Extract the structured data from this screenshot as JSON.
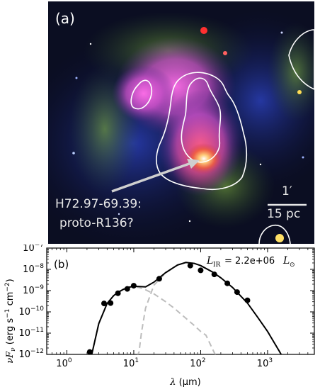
{
  "panel_a": {
    "label": "(a)",
    "source_line1": "H72.97-69.39:",
    "source_line2": "proto-R136?",
    "scale_angle": "1′",
    "scale_phys": "15 pc"
  },
  "panel_b": {
    "label": "(b)",
    "luminosity_text": "= 2.2e+06",
    "luminosity_var": "L",
    "luminosity_sub": "IR",
    "luminosity_unit": "L",
    "sun_symbol": "⊙"
  },
  "chart_data": {
    "type": "scatter",
    "xscale": "log",
    "yscale": "log",
    "xlim": [
      0.5,
      5000
    ],
    "ylim": [
      1e-12,
      1e-07
    ],
    "xlabel": "λ (μm)",
    "ylabel": "νFν (erg s⁻¹ cm⁻²)",
    "x_tick_labels": [
      "10^0",
      "10^1",
      "10^2",
      "10^3"
    ],
    "y_tick_labels": [
      "10^-12",
      "10^-11",
      "10^-10",
      "10^-9",
      "10^-8",
      "10^-7"
    ],
    "points": [
      {
        "x": 2.2,
        "y": 1.3e-12
      },
      {
        "x": 3.6,
        "y": 2.5e-10
      },
      {
        "x": 4.5,
        "y": 2.6e-10
      },
      {
        "x": 5.8,
        "y": 7.5e-10
      },
      {
        "x": 8.0,
        "y": 1.2e-09
      },
      {
        "x": 10.0,
        "y": 1.7e-09
      },
      {
        "x": 24.0,
        "y": 3.6e-09
      },
      {
        "x": 70.0,
        "y": 1.5e-08
      },
      {
        "x": 100.0,
        "y": 9e-09
      },
      {
        "x": 160.0,
        "y": 5.8e-09
      },
      {
        "x": 250.0,
        "y": 2.2e-09
      },
      {
        "x": 350.0,
        "y": 8.5e-10
      },
      {
        "x": 500.0,
        "y": 3.5e-10
      }
    ],
    "total_fit": [
      [
        2.0,
        1e-13
      ],
      [
        2.4,
        1.3e-12
      ],
      [
        3.0,
        2.8e-11
      ],
      [
        4.0,
        2.5e-10
      ],
      [
        5.0,
        5.8e-10
      ],
      [
        6.0,
        8.8e-10
      ],
      [
        7.0,
        1.15e-09
      ],
      [
        8.5,
        1.45e-09
      ],
      [
        10.0,
        1.6e-09
      ],
      [
        12.0,
        1.55e-09
      ],
      [
        15.0,
        1.5e-09
      ],
      [
        20.0,
        2.5e-09
      ],
      [
        30.0,
        7e-09
      ],
      [
        45.0,
        1.6e-08
      ],
      [
        60.0,
        2.1e-08
      ],
      [
        80.0,
        1.9e-08
      ],
      [
        100.0,
        1.5e-08
      ],
      [
        150.0,
        7.5e-09
      ],
      [
        200.0,
        4e-09
      ],
      [
        300.0,
        1.4e-09
      ],
      [
        500.0,
        2.6e-10
      ],
      [
        700.0,
        6e-11
      ],
      [
        1000.0,
        1.2e-11
      ],
      [
        1500.0,
        1.4e-12
      ],
      [
        1700.0,
        7e-13
      ]
    ],
    "component_hot": [
      [
        2.0,
        1e-13
      ],
      [
        2.4,
        1.3e-12
      ],
      [
        3.0,
        2.8e-11
      ],
      [
        4.0,
        2.5e-10
      ],
      [
        5.0,
        5.8e-10
      ],
      [
        6.0,
        8.8e-10
      ],
      [
        7.0,
        1.15e-09
      ],
      [
        8.5,
        1.45e-09
      ],
      [
        10.0,
        1.55e-09
      ],
      [
        12.0,
        1.4e-09
      ],
      [
        15.0,
        1.1e-09
      ],
      [
        20.0,
        7e-10
      ],
      [
        30.0,
        3e-10
      ],
      [
        40.0,
        1.5e-10
      ],
      [
        60.0,
        5e-11
      ],
      [
        80.0,
        2.3e-11
      ],
      [
        100.0,
        1.2e-11
      ],
      [
        120.0,
        8e-12
      ],
      [
        160.0,
        1.2e-12
      ],
      [
        170.0,
        9e-13
      ]
    ],
    "component_cold": [
      [
        11.0,
        8e-13
      ],
      [
        12.0,
        1.3e-12
      ],
      [
        13.0,
        1e-11
      ],
      [
        15.0,
        1.5e-10
      ],
      [
        20.0,
        1.8e-09
      ],
      [
        30.0,
        6.8e-09
      ],
      [
        45.0,
        1.6e-08
      ],
      [
        60.0,
        2.1e-08
      ],
      [
        80.0,
        1.9e-08
      ],
      [
        100.0,
        1.5e-08
      ],
      [
        150.0,
        7.5e-09
      ],
      [
        200.0,
        4e-09
      ],
      [
        300.0,
        1.4e-09
      ],
      [
        500.0,
        2.6e-10
      ]
    ]
  }
}
